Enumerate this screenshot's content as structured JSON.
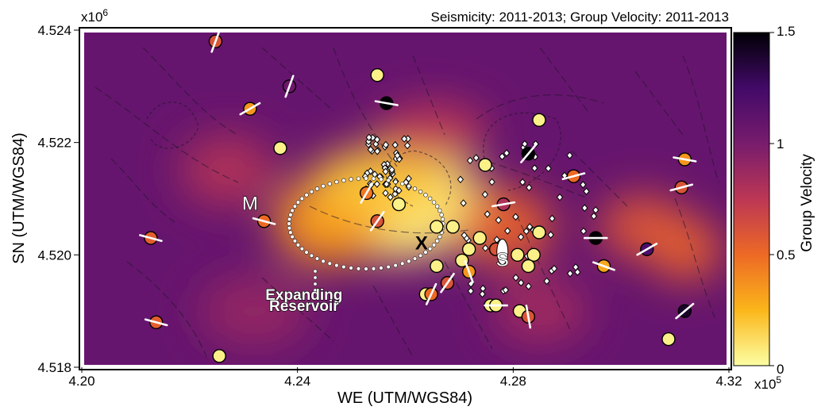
{
  "chart_data": {
    "type": "heatmap",
    "title": "Seismicity: 2011-2013; Group Velocity: 2011-2013",
    "xlabel": "WE (UTM/WGS84)",
    "ylabel": "SN (UTM/WGS84)",
    "x_multiplier": "x10",
    "x_multiplier_exp": "5",
    "y_multiplier": "x10",
    "y_multiplier_exp": "6",
    "xlim": [
      4.2,
      4.32
    ],
    "ylim": [
      4.518,
      4.524
    ],
    "x_ticks": [
      "4.20",
      "4.24",
      "4.28",
      "4.32"
    ],
    "y_ticks": [
      "4.524",
      "4.522",
      "4.520",
      "4.518"
    ],
    "colorbar": {
      "label": "Group Velocity",
      "range": [
        0,
        1.5
      ],
      "ticks": [
        "1.5",
        "1",
        "0.5",
        "0"
      ],
      "colors": [
        "#fcffa4",
        "#fbb61a",
        "#ed6925",
        "#bc3754",
        "#781c6d",
        "#420a68",
        "#000004"
      ]
    },
    "velocity_field": [
      {
        "x": 4.258,
        "y": 4.5209,
        "value": 0.08
      },
      {
        "x": 4.246,
        "y": 4.5206,
        "value": 0.35
      },
      {
        "x": 4.255,
        "y": 4.5213,
        "value": 0.2
      },
      {
        "x": 4.2785,
        "y": 4.5205,
        "value": 0.55
      },
      {
        "x": 4.304,
        "y": 4.5205,
        "value": 0.6
      },
      {
        "x": 4.312,
        "y": 4.5201,
        "value": 0.55
      },
      {
        "x": 4.227,
        "y": 4.5215,
        "value": 0.8
      },
      {
        "x": 4.265,
        "y": 4.5222,
        "value": 0.75
      },
      {
        "x": 4.232,
        "y": 4.519,
        "value": 0.9
      },
      {
        "x": 4.285,
        "y": 4.519,
        "value": 0.85
      }
    ],
    "events": [
      {
        "x": 4.2248,
        "y": 4.5238,
        "value": 0.6,
        "fault_deg": 70
      },
      {
        "x": 4.2548,
        "y": 4.5232,
        "value": 0.05
      },
      {
        "x": 4.2385,
        "y": 4.523,
        "value": 1.05,
        "fault_deg": 70
      },
      {
        "x": 4.2565,
        "y": 4.5227,
        "value": 1.5,
        "fault_deg": -10
      },
      {
        "x": 4.2312,
        "y": 4.5226,
        "value": 0.35,
        "fault_deg": 30
      },
      {
        "x": 4.2848,
        "y": 4.5224,
        "value": 0.05
      },
      {
        "x": 4.2368,
        "y": 4.5219,
        "value": 0.05
      },
      {
        "x": 4.2828,
        "y": 4.5218,
        "value": 1.5,
        "fault_deg": 50
      },
      {
        "x": 4.3118,
        "y": 4.5217,
        "value": 0.35,
        "fault_deg": -10
      },
      {
        "x": 4.2748,
        "y": 4.5216,
        "value": 0.05
      },
      {
        "x": 4.2912,
        "y": 4.5214,
        "value": 0.5,
        "fault_deg": 15
      },
      {
        "x": 4.3112,
        "y": 4.5212,
        "value": 0.6,
        "fault_deg": 15
      },
      {
        "x": 4.2528,
        "y": 4.5211,
        "value": 0.45,
        "fault_deg": 60
      },
      {
        "x": 4.2588,
        "y": 4.5209,
        "value": 0.05
      },
      {
        "x": 4.2782,
        "y": 4.5209,
        "value": 0.8,
        "fault_deg": 10
      },
      {
        "x": 4.2338,
        "y": 4.5206,
        "value": 0.5,
        "fault_deg": -15
      },
      {
        "x": 4.2548,
        "y": 4.5206,
        "value": 0.6,
        "fault_deg": 55
      },
      {
        "x": 4.2658,
        "y": 4.5205,
        "value": 0.05
      },
      {
        "x": 4.2688,
        "y": 4.5205,
        "value": 0.05
      },
      {
        "x": 4.2848,
        "y": 4.5204,
        "value": 0.05
      },
      {
        "x": 4.2953,
        "y": 4.5203,
        "value": 1.5,
        "fault_deg": 0
      },
      {
        "x": 4.2128,
        "y": 4.5203,
        "value": 0.55,
        "fault_deg": -15
      },
      {
        "x": 4.2738,
        "y": 4.5203,
        "value": 0.05
      },
      {
        "x": 4.2768,
        "y": 4.5201,
        "value": 0.6
      },
      {
        "x": 4.2718,
        "y": 4.5201,
        "value": 0.05
      },
      {
        "x": 4.2838,
        "y": 4.52,
        "value": 0.05
      },
      {
        "x": 4.2808,
        "y": 4.52,
        "value": 0.05
      },
      {
        "x": 4.3048,
        "y": 4.5201,
        "value": 1.2,
        "fault_deg": 30
      },
      {
        "x": 4.2705,
        "y": 4.5199,
        "value": 0.05
      },
      {
        "x": 4.2658,
        "y": 4.5198,
        "value": 0.05
      },
      {
        "x": 4.2828,
        "y": 4.5198,
        "value": 0.05
      },
      {
        "x": 4.2968,
        "y": 4.5198,
        "value": 0.3,
        "fault_deg": -20
      },
      {
        "x": 4.2718,
        "y": 4.5197,
        "value": 0.35,
        "fault_deg": -70
      },
      {
        "x": 4.2678,
        "y": 4.5195,
        "value": 0.6,
        "fault_deg": 55
      },
      {
        "x": 4.2638,
        "y": 4.5193,
        "value": 0.05
      },
      {
        "x": 4.2648,
        "y": 4.5193,
        "value": 0.5,
        "fault_deg": 65
      },
      {
        "x": 4.2758,
        "y": 4.5191,
        "value": 0.05
      },
      {
        "x": 4.2768,
        "y": 4.5191,
        "value": 0.05,
        "fault_deg": 0
      },
      {
        "x": 4.2812,
        "y": 4.519,
        "value": 0.05
      },
      {
        "x": 4.2828,
        "y": 4.5189,
        "value": 0.6,
        "fault_deg": -80
      },
      {
        "x": 4.3118,
        "y": 4.519,
        "value": 1.4,
        "fault_deg": 40
      },
      {
        "x": 4.2138,
        "y": 4.5188,
        "value": 0.55,
        "fault_deg": -15
      },
      {
        "x": 4.3088,
        "y": 4.5185,
        "value": 0.05
      },
      {
        "x": 4.2255,
        "y": 4.5182,
        "value": 0.05
      }
    ],
    "annotations": [
      {
        "id": "M",
        "text": "M",
        "x": 4.2312,
        "y": 4.5208
      },
      {
        "id": "X",
        "text": "X",
        "x": 4.263,
        "y": 4.5201
      },
      {
        "id": "S",
        "text": "S",
        "x": 4.278,
        "y": 4.5198
      },
      {
        "id": "reservoir1",
        "text": "Expanding",
        "x": 4.2412,
        "y": 4.5192
      },
      {
        "id": "reservoir2",
        "text": "Reservoir",
        "x": 4.2412,
        "y": 4.519
      }
    ],
    "grid": false
  }
}
